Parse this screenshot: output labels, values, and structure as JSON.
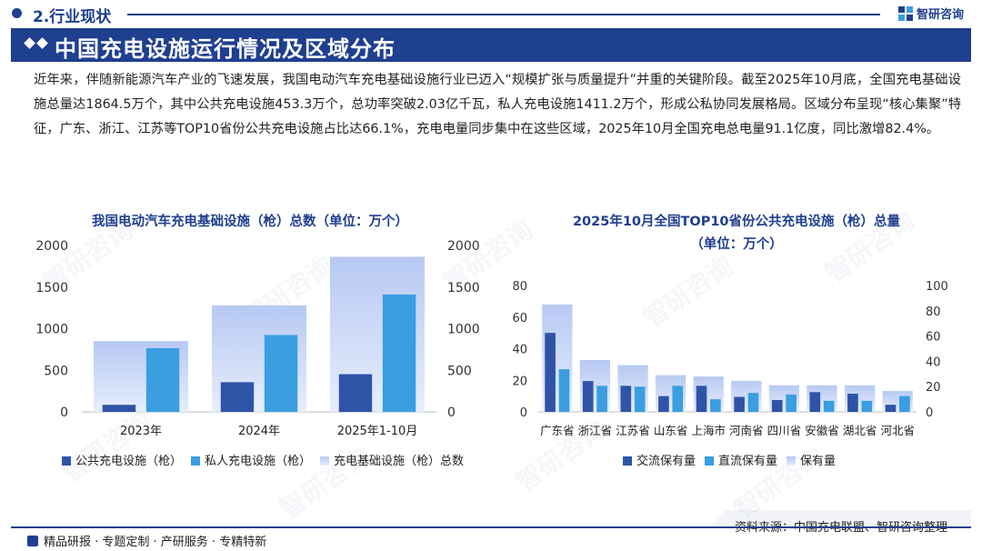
{
  "header": {
    "section_label": "2.行业现状",
    "brand_name": "智研咨询",
    "title": "中国充电设施运行情况及区域分布"
  },
  "intro_text": "近年来，伴随新能源汽车产业的飞速发展，我国电动汽车充电基础设施行业已迈入“规模扩张与质量提升”并重的关键阶段。截至2025年10月底，全国充电基础设施总量达1864.5万个，其中公共充电设施453.3万个，总功率突破2.03亿千瓦，私人充电设施1411.2万个，形成公私协同发展格局。区域分布呈现“核心集聚”特征，广东、浙江、江苏等TOP10省份公共充电设施占比达66.1%，充电电量同步集中在这些区域，2025年10月全国充电总电量91.1亿度，同比激增82.4%。",
  "watermark": "智研咨询",
  "colors": {
    "primary": "#1f3f8f",
    "series_dark": "#2f54a7",
    "series_light": "#3a9ee0",
    "series_total": "#c9d9f6"
  },
  "chart_data": [
    {
      "type": "bar",
      "title": "我国电动汽车充电基础设施（枪）总数（单位：万个）",
      "categories": [
        "2023年",
        "2024年",
        "2025年1-10月"
      ],
      "series": [
        {
          "name": "公共充电设施（枪）",
          "values": [
            85,
            357,
            453.3
          ],
          "axis": "left"
        },
        {
          "name": "私人充电设施（枪）",
          "values": [
            766,
            924,
            1411.2
          ],
          "axis": "left"
        },
        {
          "name": "充电基础设施（枪）总数",
          "values": [
            851,
            1281,
            1864.5
          ],
          "axis": "right"
        }
      ],
      "ylim": [
        0,
        2000
      ],
      "y_ticks": [
        0,
        500,
        1000,
        1500,
        2000
      ],
      "y2lim": [
        0,
        2000
      ],
      "y2_ticks": [
        0,
        500,
        1000,
        1500,
        2000
      ],
      "legend": "bottom"
    },
    {
      "type": "bar",
      "title": "2025年10月全国TOP10省份公共充电设施（枪）总量",
      "subtitle": "（单位：万个）",
      "categories": [
        "广东省",
        "浙江省",
        "江苏省",
        "山东省",
        "上海市",
        "河南省",
        "四川省",
        "安徽省",
        "湖北省",
        "河北省"
      ],
      "series": [
        {
          "name": "交流保有量",
          "values": [
            50,
            19.5,
            16.5,
            10,
            16.5,
            9.5,
            7.5,
            12.5,
            11.5,
            4.5
          ],
          "axis": "left"
        },
        {
          "name": "直流保有量",
          "values": [
            27,
            16.5,
            16,
            16.5,
            8,
            12,
            11,
            7,
            7,
            10
          ],
          "axis": "left"
        },
        {
          "name": "保有量",
          "values": [
            85,
            41,
            37,
            29,
            28,
            24.5,
            21,
            21,
            21,
            16.5
          ],
          "axis": "right"
        }
      ],
      "ylim": [
        0,
        80
      ],
      "y_ticks": [
        0,
        20,
        40,
        60,
        80
      ],
      "y2lim": [
        0,
        100
      ],
      "y2_ticks": [
        0,
        20,
        40,
        60,
        80,
        100
      ],
      "legend": "bottom"
    }
  ],
  "footer": {
    "left_text": "精品研报 · 专题定制 · 产研服务 · 专精特新",
    "source": "资料来源：中国充电联盟、智研咨询整理"
  }
}
